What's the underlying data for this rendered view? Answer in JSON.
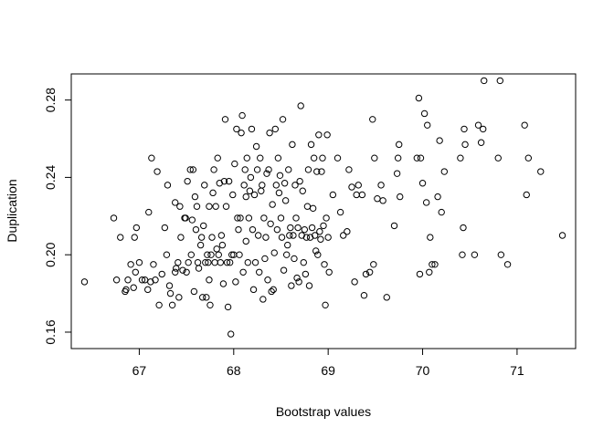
{
  "chart_data": {
    "type": "scatter",
    "xlabel": "Bootstrap values",
    "ylabel": "Duplication",
    "xlim": [
      66.28,
      71.62
    ],
    "ylim": [
      0.1515,
      0.2935
    ],
    "xticks": [
      67,
      68,
      69,
      70,
      71
    ],
    "yticks": [
      0.16,
      0.2,
      0.24,
      0.28
    ],
    "xtick_labels": [
      "67",
      "68",
      "69",
      "70",
      "71"
    ],
    "ytick_labels": [
      "0.16",
      "0.20",
      "0.24",
      "0.28"
    ],
    "grid": false,
    "marker": "open-circle",
    "point_color": "#000000",
    "points": [
      [
        66.42,
        0.186
      ],
      [
        66.73,
        0.219
      ],
      [
        66.76,
        0.187
      ],
      [
        66.8,
        0.209
      ],
      [
        66.85,
        0.181
      ],
      [
        66.86,
        0.182
      ],
      [
        66.88,
        0.187
      ],
      [
        66.91,
        0.195
      ],
      [
        66.94,
        0.183
      ],
      [
        66.95,
        0.209
      ],
      [
        66.96,
        0.191
      ],
      [
        66.97,
        0.214
      ],
      [
        67.0,
        0.196
      ],
      [
        67.03,
        0.187
      ],
      [
        67.06,
        0.187
      ],
      [
        67.09,
        0.182
      ],
      [
        67.1,
        0.222
      ],
      [
        67.12,
        0.186
      ],
      [
        67.13,
        0.25
      ],
      [
        67.15,
        0.195
      ],
      [
        67.17,
        0.187
      ],
      [
        67.19,
        0.243
      ],
      [
        67.21,
        0.174
      ],
      [
        67.24,
        0.19
      ],
      [
        67.27,
        0.214
      ],
      [
        67.29,
        0.2
      ],
      [
        67.3,
        0.236
      ],
      [
        67.32,
        0.184
      ],
      [
        67.33,
        0.18
      ],
      [
        67.35,
        0.174
      ],
      [
        67.38,
        0.227
      ],
      [
        67.38,
        0.191
      ],
      [
        67.39,
        0.193
      ],
      [
        67.41,
        0.196
      ],
      [
        67.42,
        0.178
      ],
      [
        67.43,
        0.225
      ],
      [
        67.44,
        0.209
      ],
      [
        67.46,
        0.192
      ],
      [
        67.48,
        0.219
      ],
      [
        67.49,
        0.219
      ],
      [
        67.5,
        0.191
      ],
      [
        67.51,
        0.238
      ],
      [
        67.52,
        0.196
      ],
      [
        67.54,
        0.244
      ],
      [
        67.55,
        0.2
      ],
      [
        67.56,
        0.218
      ],
      [
        67.57,
        0.244
      ],
      [
        67.58,
        0.181
      ],
      [
        67.59,
        0.23
      ],
      [
        67.6,
        0.213
      ],
      [
        67.61,
        0.225
      ],
      [
        67.62,
        0.196
      ],
      [
        67.63,
        0.193
      ],
      [
        67.65,
        0.205
      ],
      [
        67.66,
        0.209
      ],
      [
        67.67,
        0.178
      ],
      [
        67.68,
        0.215
      ],
      [
        67.69,
        0.236
      ],
      [
        67.7,
        0.196
      ],
      [
        67.71,
        0.178
      ],
      [
        67.72,
        0.2
      ],
      [
        67.73,
        0.196
      ],
      [
        67.74,
        0.187
      ],
      [
        67.74,
        0.225
      ],
      [
        67.75,
        0.174
      ],
      [
        67.76,
        0.2
      ],
      [
        67.77,
        0.209
      ],
      [
        67.78,
        0.232
      ],
      [
        67.79,
        0.244
      ],
      [
        67.8,
        0.196
      ],
      [
        67.81,
        0.225
      ],
      [
        67.82,
        0.203
      ],
      [
        67.83,
        0.25
      ],
      [
        67.84,
        0.2
      ],
      [
        67.85,
        0.237
      ],
      [
        67.86,
        0.196
      ],
      [
        67.87,
        0.21
      ],
      [
        67.88,
        0.205
      ],
      [
        67.89,
        0.185
      ],
      [
        67.9,
        0.238
      ],
      [
        67.91,
        0.27
      ],
      [
        67.92,
        0.225
      ],
      [
        67.93,
        0.196
      ],
      [
        67.94,
        0.173
      ],
      [
        67.95,
        0.238
      ],
      [
        67.96,
        0.196
      ],
      [
        67.97,
        0.159
      ],
      [
        67.98,
        0.2
      ],
      [
        67.99,
        0.231
      ],
      [
        68.0,
        0.2
      ],
      [
        68.01,
        0.247
      ],
      [
        68.02,
        0.186
      ],
      [
        68.03,
        0.265
      ],
      [
        68.04,
        0.219
      ],
      [
        68.05,
        0.213
      ],
      [
        68.06,
        0.2
      ],
      [
        68.07,
        0.219
      ],
      [
        68.08,
        0.263
      ],
      [
        68.09,
        0.272
      ],
      [
        68.1,
        0.191
      ],
      [
        68.11,
        0.236
      ],
      [
        68.12,
        0.244
      ],
      [
        68.13,
        0.23
      ],
      [
        68.13,
        0.207
      ],
      [
        68.14,
        0.25
      ],
      [
        68.15,
        0.196
      ],
      [
        68.16,
        0.219
      ],
      [
        68.17,
        0.233
      ],
      [
        68.18,
        0.24
      ],
      [
        68.19,
        0.265
      ],
      [
        68.2,
        0.213
      ],
      [
        68.21,
        0.182
      ],
      [
        68.22,
        0.231
      ],
      [
        68.23,
        0.196
      ],
      [
        68.24,
        0.256
      ],
      [
        68.25,
        0.244
      ],
      [
        68.26,
        0.21
      ],
      [
        68.27,
        0.191
      ],
      [
        68.28,
        0.25
      ],
      [
        68.29,
        0.233
      ],
      [
        68.3,
        0.236
      ],
      [
        68.31,
        0.177
      ],
      [
        68.32,
        0.219
      ],
      [
        68.33,
        0.198
      ],
      [
        68.34,
        0.209
      ],
      [
        68.35,
        0.242
      ],
      [
        68.36,
        0.187
      ],
      [
        68.37,
        0.244
      ],
      [
        68.38,
        0.263
      ],
      [
        68.39,
        0.216
      ],
      [
        68.4,
        0.181
      ],
      [
        68.41,
        0.226
      ],
      [
        68.42,
        0.182
      ],
      [
        68.43,
        0.201
      ],
      [
        68.44,
        0.265
      ],
      [
        68.45,
        0.236
      ],
      [
        68.46,
        0.213
      ],
      [
        68.47,
        0.25
      ],
      [
        68.48,
        0.232
      ],
      [
        68.49,
        0.241
      ],
      [
        68.5,
        0.219
      ],
      [
        68.51,
        0.209
      ],
      [
        68.52,
        0.27
      ],
      [
        68.53,
        0.192
      ],
      [
        68.54,
        0.237
      ],
      [
        68.55,
        0.228
      ],
      [
        68.56,
        0.2
      ],
      [
        68.57,
        0.205
      ],
      [
        68.58,
        0.244
      ],
      [
        68.59,
        0.21
      ],
      [
        68.6,
        0.214
      ],
      [
        68.61,
        0.184
      ],
      [
        68.62,
        0.257
      ],
      [
        68.63,
        0.21
      ],
      [
        68.64,
        0.198
      ],
      [
        68.65,
        0.236
      ],
      [
        68.66,
        0.219
      ],
      [
        68.67,
        0.188
      ],
      [
        68.68,
        0.214
      ],
      [
        68.69,
        0.186
      ],
      [
        68.7,
        0.238
      ],
      [
        68.71,
        0.277
      ],
      [
        68.72,
        0.21
      ],
      [
        68.73,
        0.233
      ],
      [
        68.74,
        0.196
      ],
      [
        68.75,
        0.213
      ],
      [
        68.76,
        0.19
      ],
      [
        68.77,
        0.209
      ],
      [
        68.78,
        0.225
      ],
      [
        68.79,
        0.244
      ],
      [
        68.8,
        0.184
      ],
      [
        68.81,
        0.209
      ],
      [
        68.82,
        0.257
      ],
      [
        68.83,
        0.214
      ],
      [
        68.84,
        0.224
      ],
      [
        68.85,
        0.25
      ],
      [
        68.86,
        0.21
      ],
      [
        68.87,
        0.202
      ],
      [
        68.88,
        0.243
      ],
      [
        68.89,
        0.2
      ],
      [
        68.9,
        0.262
      ],
      [
        68.91,
        0.212
      ],
      [
        68.92,
        0.208
      ],
      [
        68.93,
        0.243
      ],
      [
        68.94,
        0.25
      ],
      [
        68.95,
        0.215
      ],
      [
        68.96,
        0.195
      ],
      [
        68.97,
        0.174
      ],
      [
        68.98,
        0.219
      ],
      [
        68.99,
        0.262
      ],
      [
        69.0,
        0.209
      ],
      [
        69.01,
        0.191
      ],
      [
        69.05,
        0.231
      ],
      [
        69.1,
        0.25
      ],
      [
        69.13,
        0.222
      ],
      [
        69.16,
        0.21
      ],
      [
        69.2,
        0.212
      ],
      [
        69.22,
        0.244
      ],
      [
        69.25,
        0.235
      ],
      [
        69.28,
        0.186
      ],
      [
        69.3,
        0.231
      ],
      [
        69.32,
        0.236
      ],
      [
        69.36,
        0.231
      ],
      [
        69.38,
        0.179
      ],
      [
        69.4,
        0.19
      ],
      [
        69.44,
        0.191
      ],
      [
        69.47,
        0.27
      ],
      [
        69.48,
        0.195
      ],
      [
        69.49,
        0.25
      ],
      [
        69.52,
        0.229
      ],
      [
        69.56,
        0.236
      ],
      [
        69.58,
        0.228
      ],
      [
        69.62,
        0.178
      ],
      [
        69.7,
        0.215
      ],
      [
        69.73,
        0.242
      ],
      [
        69.74,
        0.25
      ],
      [
        69.75,
        0.257
      ],
      [
        69.76,
        0.23
      ],
      [
        69.94,
        0.25
      ],
      [
        69.96,
        0.281
      ],
      [
        69.97,
        0.19
      ],
      [
        69.98,
        0.25
      ],
      [
        70.0,
        0.237
      ],
      [
        70.02,
        0.273
      ],
      [
        70.04,
        0.227
      ],
      [
        70.05,
        0.267
      ],
      [
        70.07,
        0.191
      ],
      [
        70.08,
        0.209
      ],
      [
        70.1,
        0.195
      ],
      [
        70.13,
        0.195
      ],
      [
        70.16,
        0.23
      ],
      [
        70.18,
        0.259
      ],
      [
        70.2,
        0.222
      ],
      [
        70.23,
        0.243
      ],
      [
        70.4,
        0.25
      ],
      [
        70.42,
        0.2
      ],
      [
        70.43,
        0.214
      ],
      [
        70.44,
        0.265
      ],
      [
        70.45,
        0.257
      ],
      [
        70.55,
        0.2
      ],
      [
        70.59,
        0.267
      ],
      [
        70.62,
        0.258
      ],
      [
        70.64,
        0.265
      ],
      [
        70.65,
        0.29
      ],
      [
        70.8,
        0.25
      ],
      [
        70.82,
        0.29
      ],
      [
        70.83,
        0.2
      ],
      [
        70.9,
        0.195
      ],
      [
        71.08,
        0.267
      ],
      [
        71.1,
        0.231
      ],
      [
        71.12,
        0.25
      ],
      [
        71.25,
        0.243
      ],
      [
        71.48,
        0.21
      ]
    ]
  }
}
